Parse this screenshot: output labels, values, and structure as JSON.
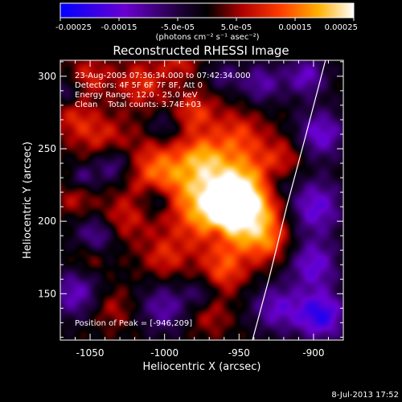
{
  "colorbar": {
    "ticks": [
      -0.00025,
      -0.00015,
      -5e-05,
      5e-05,
      0.00015,
      0.00025
    ],
    "tick_labels": [
      "-0.00025",
      "-0.00015",
      "-5.0e-05",
      "5.0e-05",
      "0.00015",
      "0.00025"
    ],
    "units": "(photons cm⁻² s⁻¹ asec⁻²)",
    "range": [
      -0.00025,
      0.00025
    ],
    "colors": [
      "#0000ff",
      "#7a00c8",
      "#000000",
      "#e00000",
      "#ff8a00",
      "#ffffff"
    ]
  },
  "chart_data": {
    "type": "heatmap",
    "title": "Reconstructed RHESSI Image",
    "xlabel": "Heliocentric X (arcsec)",
    "ylabel": "Heliocentric Y (arcsec)",
    "xlim": [
      -1070,
      -880
    ],
    "ylim": [
      118,
      311
    ],
    "xticks": [
      -1050,
      -1000,
      -950,
      -900
    ],
    "yticks": [
      150,
      200,
      250,
      300
    ],
    "info": [
      "23-Aug-2005 07:36:34.000 to 07:42:34.000",
      "Detectors: 4F 5F 6F 7F 8F, Att 0",
      "Energy Range: 12.0 - 25.0 keV",
      "Clean    Total counts: 3.74E+03"
    ],
    "peak_label": "Position of Peak = [-946,209]",
    "peak": [
      -946,
      209
    ],
    "limb": [
      [
        -941,
        118
      ],
      [
        -930,
        160
      ],
      [
        -918,
        210
      ],
      [
        -905,
        260
      ],
      [
        -892,
        311
      ]
    ],
    "sources": [
      {
        "x": -950,
        "y": 210,
        "s": 20,
        "a": 1.5
      },
      {
        "x": -970,
        "y": 220,
        "s": 25,
        "a": 0.8
      },
      {
        "x": -1005,
        "y": 235,
        "s": 15,
        "a": 0.7
      },
      {
        "x": -1040,
        "y": 255,
        "s": 12,
        "a": 0.6
      },
      {
        "x": -1060,
        "y": 270,
        "s": 10,
        "a": 0.5
      },
      {
        "x": -980,
        "y": 275,
        "s": 10,
        "a": 0.6
      },
      {
        "x": -950,
        "y": 260,
        "s": 12,
        "a": 0.5
      },
      {
        "x": -1015,
        "y": 295,
        "s": 12,
        "a": 0.6
      },
      {
        "x": -1050,
        "y": 300,
        "s": 10,
        "a": 0.5
      },
      {
        "x": -1030,
        "y": 200,
        "s": 12,
        "a": 0.5
      },
      {
        "x": -1000,
        "y": 175,
        "s": 10,
        "a": 0.5
      },
      {
        "x": -960,
        "y": 165,
        "s": 10,
        "a": 0.6
      },
      {
        "x": -930,
        "y": 185,
        "s": 10,
        "a": 0.5
      },
      {
        "x": -920,
        "y": 245,
        "s": 10,
        "a": 0.4
      },
      {
        "x": -1050,
        "y": 175,
        "s": 8,
        "a": 0.4
      },
      {
        "x": -1035,
        "y": 140,
        "s": 10,
        "a": 0.4
      },
      {
        "x": -970,
        "y": 135,
        "s": 10,
        "a": 0.4
      },
      {
        "x": -1060,
        "y": 215,
        "s": 8,
        "a": 0.4
      },
      {
        "x": -990,
        "y": 310,
        "s": 8,
        "a": 0.5
      },
      {
        "x": -975,
        "y": 245,
        "s": 9,
        "a": 0.5
      },
      {
        "x": -1035,
        "y": 240,
        "s": 10,
        "a": -0.8
      },
      {
        "x": -1005,
        "y": 215,
        "s": 8,
        "a": -0.7
      },
      {
        "x": -1045,
        "y": 190,
        "s": 10,
        "a": -0.8
      },
      {
        "x": -1060,
        "y": 150,
        "s": 12,
        "a": -0.8
      },
      {
        "x": -1000,
        "y": 140,
        "s": 12,
        "a": -0.7
      },
      {
        "x": -975,
        "y": 150,
        "s": 7,
        "a": -0.5
      },
      {
        "x": -925,
        "y": 140,
        "s": 12,
        "a": -0.8
      },
      {
        "x": -895,
        "y": 135,
        "s": 12,
        "a": -1.2
      },
      {
        "x": -900,
        "y": 170,
        "s": 12,
        "a": -0.9
      },
      {
        "x": -900,
        "y": 210,
        "s": 14,
        "a": -1.0
      },
      {
        "x": -895,
        "y": 260,
        "s": 12,
        "a": -0.9
      },
      {
        "x": -905,
        "y": 300,
        "s": 10,
        "a": -0.8
      },
      {
        "x": -935,
        "y": 295,
        "s": 10,
        "a": -0.7
      },
      {
        "x": -960,
        "y": 300,
        "s": 7,
        "a": -0.5
      },
      {
        "x": -1000,
        "y": 265,
        "s": 8,
        "a": -0.5
      },
      {
        "x": -965,
        "y": 190,
        "s": 6,
        "a": -0.4
      },
      {
        "x": -1065,
        "y": 290,
        "s": 6,
        "a": -0.5
      },
      {
        "x": -925,
        "y": 225,
        "s": 8,
        "a": -0.5
      },
      {
        "x": -1055,
        "y": 230,
        "s": 6,
        "a": -0.5
      }
    ]
  },
  "timestamp": "8-Jul-2013 17:52"
}
